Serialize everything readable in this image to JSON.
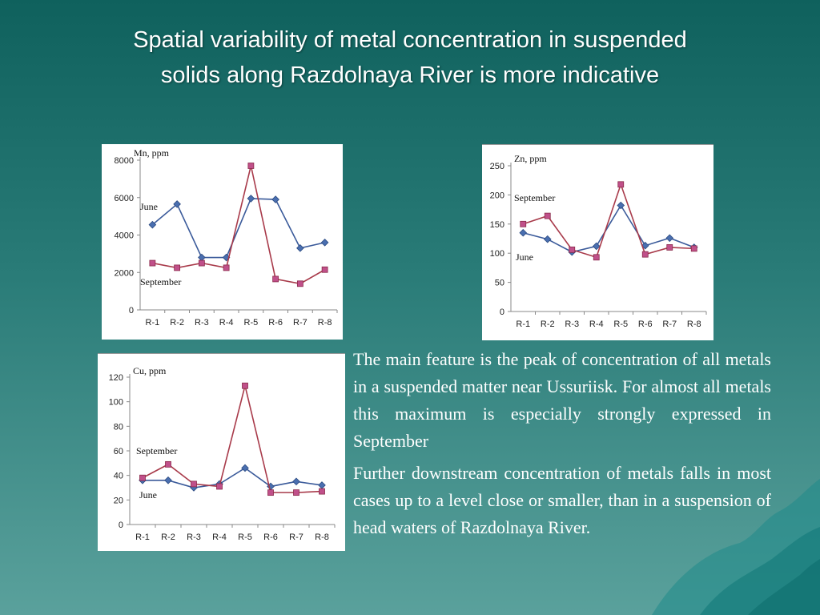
{
  "slide": {
    "title_line1": "Spatial variability of metal concentration in suspended",
    "title_line2": "solids along Razdolnaya River is more indicative",
    "paragraphs": [
      "The main feature is the peak of concentration of all metals in a suspended matter near Ussuriisk. For almost all metals this maximum is especially strongly expressed in September",
      "Further downstream concentration of metals falls in most cases up to a level close or smaller, than in a suspension of head waters of Razdolnaya River."
    ]
  },
  "colors": {
    "june": "#3a5a9a",
    "september": "#a83a4a",
    "september_marker": "#c0508a"
  },
  "chart_data": [
    {
      "type": "line",
      "title": "Mn, ppm",
      "categories": [
        "R-1",
        "R-2",
        "R-3",
        "R-4",
        "R-5",
        "R-6",
        "R-7",
        "R-8"
      ],
      "ylim": [
        0,
        8000
      ],
      "yticks": [
        0,
        2000,
        4000,
        6000,
        8000
      ],
      "series": [
        {
          "name": "June",
          "values": [
            4550,
            5650,
            2800,
            2800,
            5950,
            5900,
            3300,
            3600
          ]
        },
        {
          "name": "September",
          "values": [
            2500,
            2250,
            2500,
            2250,
            7700,
            1650,
            1400,
            2150
          ]
        }
      ],
      "labels": {
        "June": "June",
        "September": "September"
      }
    },
    {
      "type": "line",
      "title": "Zn, ppm",
      "categories": [
        "R-1",
        "R-2",
        "R-3",
        "R-4",
        "R-5",
        "R-6",
        "R-7",
        "R-8"
      ],
      "ylim": [
        0,
        250
      ],
      "yticks": [
        0,
        50,
        100,
        150,
        200,
        250
      ],
      "series": [
        {
          "name": "June",
          "values": [
            135,
            124,
            102,
            112,
            182,
            113,
            126,
            110
          ]
        },
        {
          "name": "September",
          "values": [
            150,
            164,
            106,
            93,
            218,
            98,
            110,
            108
          ]
        }
      ],
      "labels": {
        "June": "June",
        "September": "September"
      }
    },
    {
      "type": "line",
      "title": "Cu, ppm",
      "categories": [
        "R-1",
        "R-2",
        "R-3",
        "R-4",
        "R-5",
        "R-6",
        "R-7",
        "R-8"
      ],
      "ylim": [
        0,
        120
      ],
      "yticks": [
        0,
        20,
        40,
        60,
        80,
        100,
        120
      ],
      "series": [
        {
          "name": "June",
          "values": [
            36,
            36,
            30,
            33,
            46,
            31,
            35,
            32
          ]
        },
        {
          "name": "September",
          "values": [
            38,
            49,
            33,
            31,
            113,
            26,
            26,
            27
          ]
        }
      ],
      "labels": {
        "June": "June",
        "September": "September"
      }
    }
  ]
}
